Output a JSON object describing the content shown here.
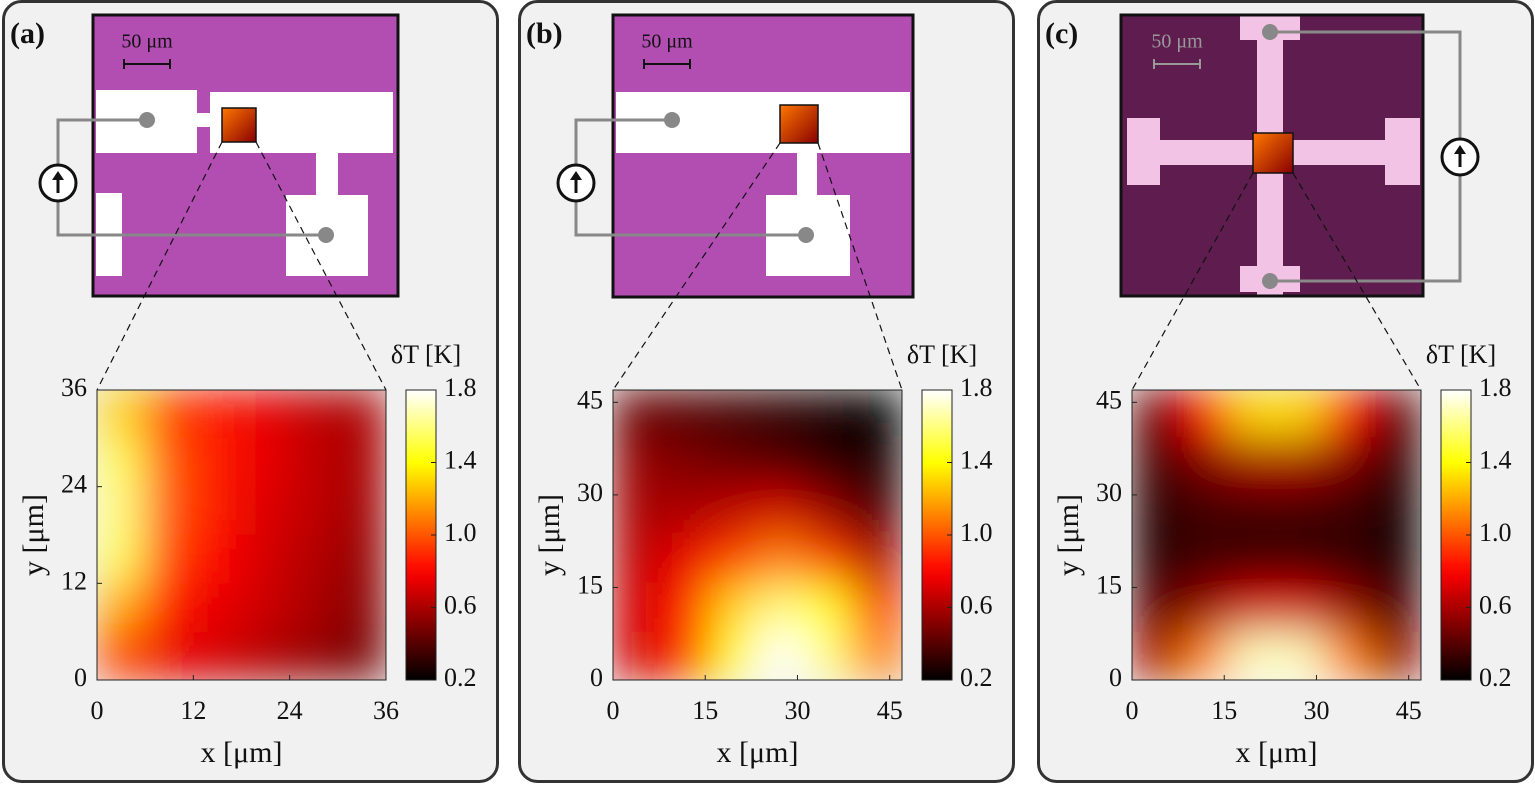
{
  "chart_data": [
    {
      "type": "heatmap",
      "panel_label": "(a)",
      "scale_bar": "50 μm",
      "xlabel": "x [μm]",
      "ylabel": "y [μm]",
      "colorbar_label": "δT [K]",
      "colormap": "hot",
      "xlim": [
        0,
        36
      ],
      "ylim": [
        0,
        36
      ],
      "xticks": [
        0,
        12,
        24,
        36
      ],
      "yticks": [
        0,
        12,
        24,
        36
      ],
      "clim": [
        0.2,
        1.8
      ],
      "cticks": [
        0.2,
        0.6,
        {
          "value": 1,
          "label": "1.0"
        },
        1.4,
        1.8
      ],
      "z": [
        [
          1.3,
          0.95,
          0.85,
          0.75,
          0.65,
          0.6
        ],
        [
          1.55,
          1.0,
          0.85,
          0.75,
          0.65,
          0.6
        ],
        [
          1.6,
          1.0,
          0.85,
          0.72,
          0.65,
          0.58
        ],
        [
          1.55,
          0.95,
          0.8,
          0.7,
          0.62,
          0.55
        ],
        [
          1.2,
          0.85,
          0.75,
          0.68,
          0.6,
          0.52
        ],
        [
          0.95,
          0.75,
          0.7,
          0.62,
          0.55,
          0.48
        ]
      ]
    },
    {
      "type": "heatmap",
      "panel_label": "(b)",
      "scale_bar": "50 μm",
      "xlabel": "x [μm]",
      "ylabel": "y [μm]",
      "colorbar_label": "δT [K]",
      "colormap": "hot",
      "xlim": [
        0,
        47
      ],
      "ylim": [
        0,
        47
      ],
      "xticks": [
        0,
        15,
        30,
        45
      ],
      "yticks": [
        0,
        15,
        30,
        45
      ],
      "clim": [
        0.2,
        1.8
      ],
      "cticks": [
        0.2,
        0.6,
        {
          "value": 1,
          "label": "1.0"
        },
        1.4,
        1.8
      ],
      "z": [
        [
          0.45,
          0.4,
          0.35,
          0.3,
          0.25,
          0.2
        ],
        [
          0.55,
          0.5,
          0.45,
          0.4,
          0.3,
          0.25
        ],
        [
          0.6,
          0.6,
          0.65,
          0.7,
          0.55,
          0.35
        ],
        [
          0.65,
          0.75,
          0.95,
          1.1,
          0.95,
          0.6
        ],
        [
          0.7,
          0.85,
          1.3,
          1.6,
          1.4,
          0.9
        ],
        [
          0.7,
          0.9,
          1.4,
          1.8,
          1.6,
          1.1
        ]
      ]
    },
    {
      "type": "heatmap",
      "panel_label": "(c)",
      "scale_bar": "50 μm",
      "xlabel": "x [μm]",
      "ylabel": "y [μm]",
      "colorbar_label": "δT [K]",
      "colormap": "hot",
      "xlim": [
        0,
        47
      ],
      "ylim": [
        0,
        47
      ],
      "xticks": [
        0,
        15,
        30,
        45
      ],
      "yticks": [
        0,
        15,
        30,
        45
      ],
      "clim": [
        0.2,
        1.8
      ],
      "cticks": [
        0.2,
        0.6,
        {
          "value": 1,
          "label": "1.0"
        },
        1.4,
        1.8
      ],
      "z": [
        [
          0.45,
          0.8,
          1.3,
          1.3,
          0.8,
          0.4
        ],
        [
          0.35,
          0.5,
          0.6,
          0.6,
          0.5,
          0.3
        ],
        [
          0.3,
          0.35,
          0.35,
          0.35,
          0.33,
          0.25
        ],
        [
          0.3,
          0.35,
          0.35,
          0.35,
          0.33,
          0.25
        ],
        [
          0.4,
          0.55,
          0.7,
          0.7,
          0.55,
          0.35
        ],
        [
          0.6,
          1.1,
          1.7,
          1.7,
          1.1,
          0.55
        ]
      ]
    }
  ]
}
